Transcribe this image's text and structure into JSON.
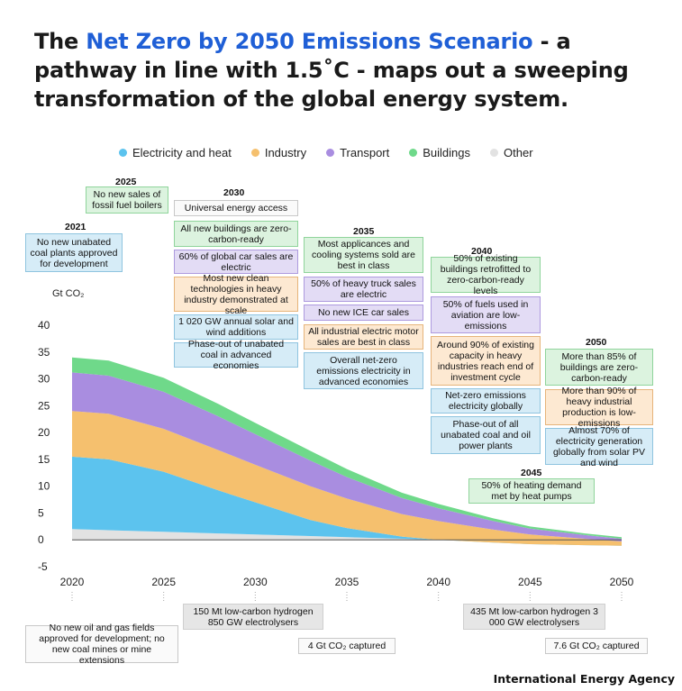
{
  "headline": {
    "pre": "The ",
    "highlight": "Net Zero by 2050 Emissions Scenario",
    "post": " - a pathway in line with 1.5˚C - maps out a sweeping transformation of the global energy system."
  },
  "colors": {
    "electricity": "#5cc3ee",
    "industry": "#f5c06e",
    "transport": "#a98de0",
    "buildings": "#6fd98a",
    "other": "#e2e2e2",
    "accent": "#1f5fd6"
  },
  "chart_data": {
    "type": "area",
    "ylabel": "Gt CO₂",
    "ylim": [
      -5,
      40
    ],
    "yticks": [
      -5,
      0,
      5,
      10,
      15,
      20,
      25,
      30,
      35,
      40
    ],
    "xticks": [
      2020,
      2025,
      2030,
      2035,
      2040,
      2045,
      2050
    ],
    "x": [
      2020,
      2022,
      2025,
      2028,
      2030,
      2033,
      2035,
      2038,
      2040,
      2043,
      2045,
      2048,
      2050
    ],
    "series": [
      {
        "name": "Other",
        "values": [
          2.0,
          1.8,
          1.5,
          1.2,
          1.0,
          0.7,
          0.5,
          0.2,
          0.0,
          -0.3,
          -0.5,
          -0.7,
          -0.8
        ]
      },
      {
        "name": "Electricity and heat",
        "values": [
          13.5,
          13.2,
          11.2,
          8.0,
          6.0,
          3.0,
          1.7,
          0.4,
          0.0,
          -0.2,
          -0.3,
          -0.3,
          -0.3
        ]
      },
      {
        "name": "Industry",
        "values": [
          8.5,
          8.5,
          8.0,
          7.5,
          7.0,
          6.3,
          5.5,
          4.2,
          3.5,
          2.4,
          1.8,
          1.2,
          0.8
        ]
      },
      {
        "name": "Transport",
        "values": [
          7.2,
          7.1,
          6.9,
          6.3,
          5.7,
          4.8,
          4.0,
          3.0,
          2.4,
          1.6,
          1.1,
          0.7,
          0.5
        ]
      },
      {
        "name": "Buildings",
        "values": [
          2.8,
          2.8,
          2.6,
          2.3,
          2.1,
          1.8,
          1.5,
          1.0,
          0.8,
          0.5,
          0.4,
          0.3,
          0.3
        ]
      }
    ],
    "legend": [
      {
        "name": "Electricity and heat",
        "color": "#5cc3ee"
      },
      {
        "name": "Industry",
        "color": "#f5c06e"
      },
      {
        "name": "Transport",
        "color": "#a98de0"
      },
      {
        "name": "Buildings",
        "color": "#6fd98a"
      },
      {
        "name": "Other",
        "color": "#e2e2e2"
      }
    ]
  },
  "milestones": {
    "y2021": {
      "year": "2021",
      "items": [
        "No new unabated coal plants approved for development"
      ]
    },
    "y2025": {
      "year": "2025",
      "items": [
        "No new sales of fossil fuel boilers"
      ]
    },
    "y2030": {
      "year": "2030",
      "items": [
        "Universal energy access",
        "All new buildings are zero-carbon-ready",
        "60% of global car sales are electric",
        "Most new clean technologies in heavy industry demonstrated at scale",
        "1 020 GW annual solar and wind additions",
        "Phase-out of unabated coal in advanced economies"
      ]
    },
    "y2035": {
      "year": "2035",
      "items": [
        "Most applicances and cooling systems sold are best in class",
        "50% of heavy truck sales are electric",
        "No new ICE car sales",
        "All industrial electric motor sales are best in class",
        "Overall net-zero emissions electricity in advanced economies"
      ]
    },
    "y2040": {
      "year": "2040",
      "items": [
        "50% of existing buildings retrofitted to zero-carbon-ready levels",
        "50% of fuels used in aviation are low-emissions",
        "Around 90% of existing capacity in heavy industries reach end of investment cycle",
        "Net-zero emissions electricity globally",
        "Phase-out of all unabated coal and oil power plants"
      ]
    },
    "y2045": {
      "year": "2045",
      "items": [
        "50% of heating demand met by heat pumps"
      ]
    },
    "y2050": {
      "year": "2050",
      "items": [
        "More than 85% of buildings are zero-carbon-ready",
        "More than 90% of heavy industrial production is low-emissions",
        "Almost 70% of electricity generation globally from solar PV and wind"
      ]
    },
    "bottom": {
      "b2020": "No new oil and gas fields approved for development; no new coal mines or mine extensions",
      "b2030": "150 Mt low-carbon hydrogen 850 GW electrolysers",
      "b2035": "4 Gt CO₂ captured",
      "b2045": "435 Mt low-carbon hydrogen 3 000 GW electrolysers",
      "b2050": "7.6 Gt CO₂ captured"
    }
  },
  "source": "International Energy Agency"
}
